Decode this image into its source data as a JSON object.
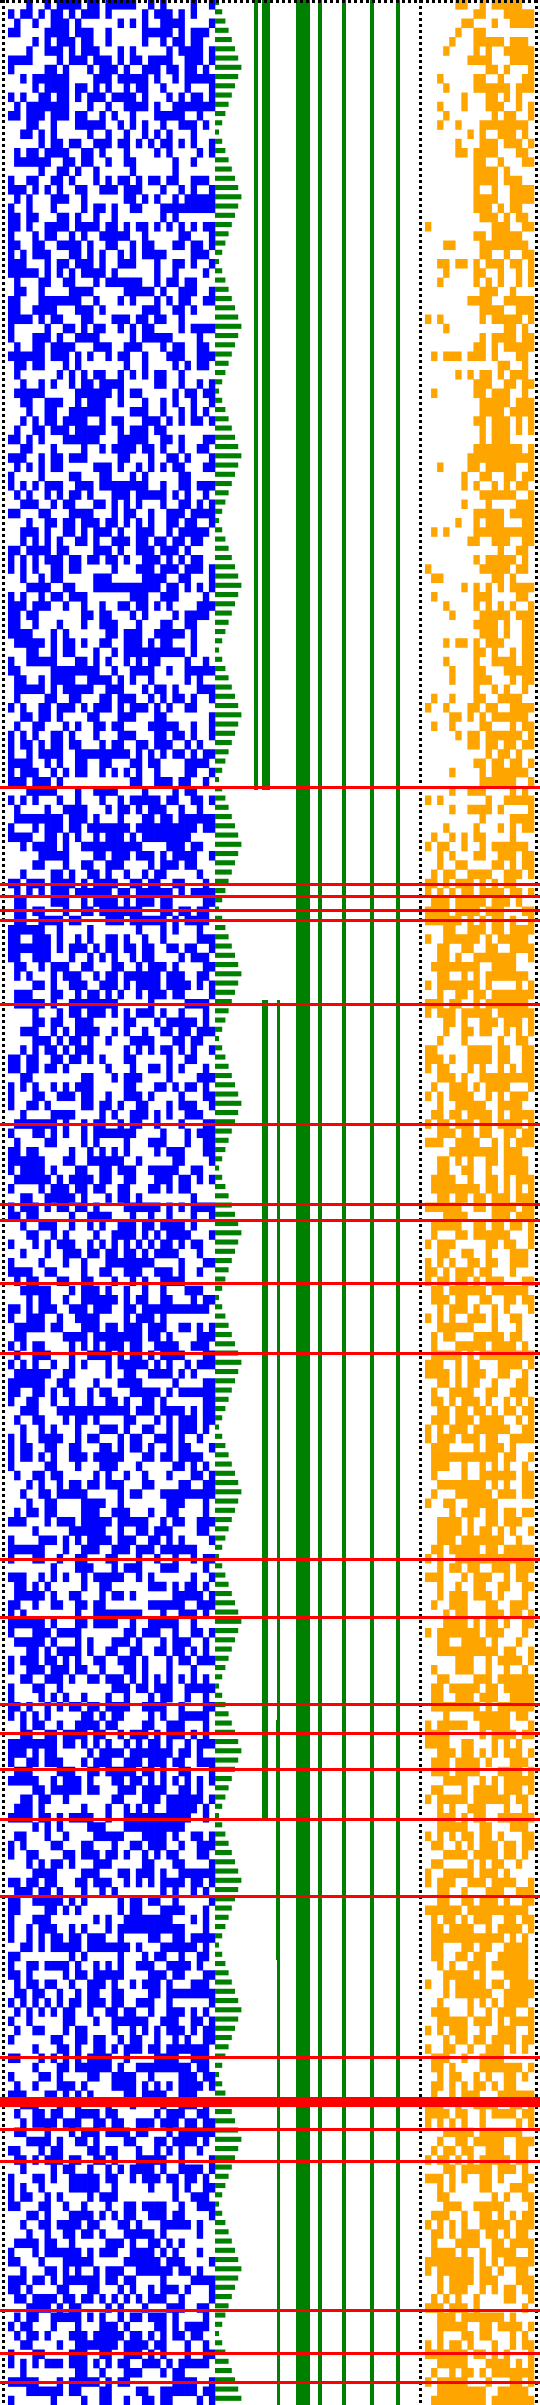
{
  "chart_data": {
    "type": "heatmap",
    "title": "",
    "xlabel": "",
    "ylabel": "",
    "description_free": true,
    "palette": {
      "background": "#ffffff",
      "left_cells": "#0000ff",
      "right_cells": "#ffa500",
      "bars": "#008000",
      "separators": "#ff0000",
      "dotted_borders": "#000000"
    },
    "grid": {
      "rows": 260,
      "left_columns": 34,
      "right_columns": 18,
      "left_fill_fraction": 0.5,
      "right_fill_fraction": 0.62
    },
    "bars": {
      "count": 8,
      "long_bar_values": [
        1,
        1,
        1,
        1,
        1,
        1
      ],
      "staircase_steps": 14
    },
    "separator_row_fractions": [
      0.327,
      0.367,
      0.372,
      0.378,
      0.382,
      0.417,
      0.467,
      0.5,
      0.507,
      0.533,
      0.562,
      0.648,
      0.672,
      0.708,
      0.72,
      0.735,
      0.756,
      0.788,
      0.855,
      0.873,
      0.872,
      0.875,
      0.885,
      0.898,
      0.96,
      0.978,
      0.99
    ]
  }
}
